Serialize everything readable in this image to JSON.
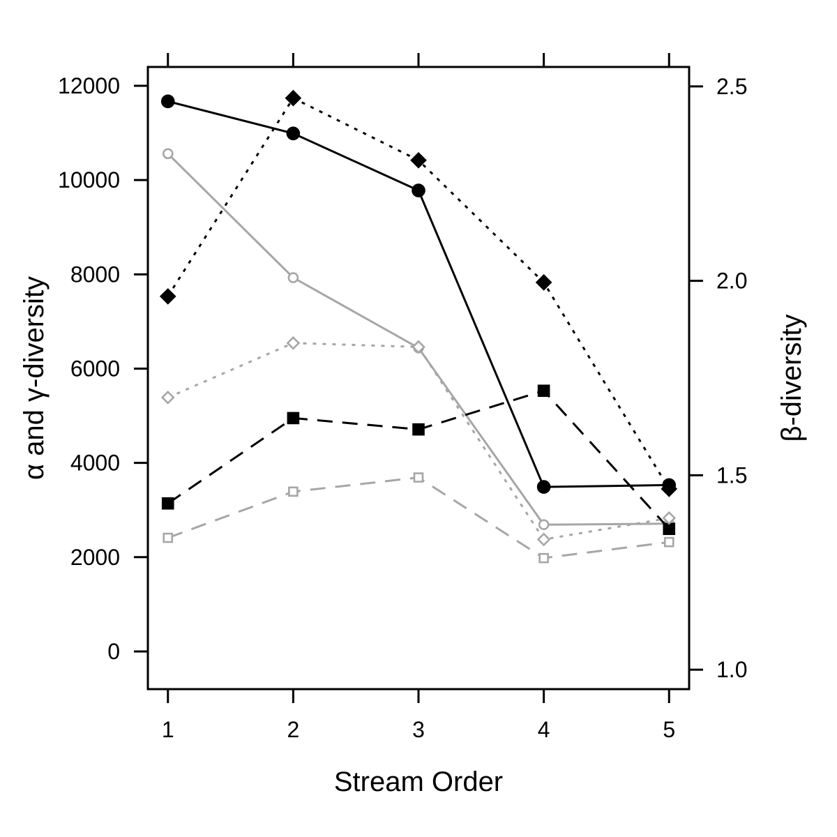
{
  "chart_data": {
    "type": "line",
    "xlabel": "Stream Order",
    "ylabel_left": "α and γ-diversity",
    "ylabel_right": "β-diversity",
    "x": [
      1,
      2,
      3,
      4,
      5
    ],
    "ylim_left": [
      -800,
      12400
    ],
    "yticks_left": [
      0,
      2000,
      4000,
      6000,
      8000,
      10000,
      12000
    ],
    "ylim_right": [
      0.95,
      2.55
    ],
    "yticks_right": [
      1.0,
      1.5,
      2.0,
      2.5
    ],
    "yticks_right_labels": [
      "1.0",
      "1.5",
      "2.0",
      "2.5"
    ],
    "series": [
      {
        "axis": "left",
        "color": "#000000",
        "dash": "solid",
        "marker": "circle",
        "fill": true,
        "values": [
          11670,
          10990,
          9780,
          3490,
          3530
        ]
      },
      {
        "axis": "left",
        "color": "#a6a6a6",
        "dash": "solid",
        "marker": "circle",
        "fill": false,
        "values": [
          10560,
          7930,
          6440,
          2690,
          2710
        ]
      },
      {
        "axis": "left",
        "color": "#000000",
        "dash": "dashed",
        "marker": "square",
        "fill": true,
        "values": [
          3140,
          4950,
          4710,
          5530,
          2600
        ]
      },
      {
        "axis": "left",
        "color": "#a6a6a6",
        "dash": "dashed",
        "marker": "square",
        "fill": false,
        "values": [
          2410,
          3390,
          3690,
          1980,
          2320
        ]
      },
      {
        "axis": "right",
        "color": "#000000",
        "dash": "dotted",
        "marker": "diamond",
        "fill": true,
        "values": [
          1.96,
          2.47,
          2.31,
          1.996,
          1.465
        ]
      },
      {
        "axis": "right",
        "color": "#a6a6a6",
        "dash": "dotted",
        "marker": "diamond",
        "fill": false,
        "values": [
          1.7,
          1.84,
          1.83,
          1.335,
          1.39
        ]
      }
    ]
  }
}
